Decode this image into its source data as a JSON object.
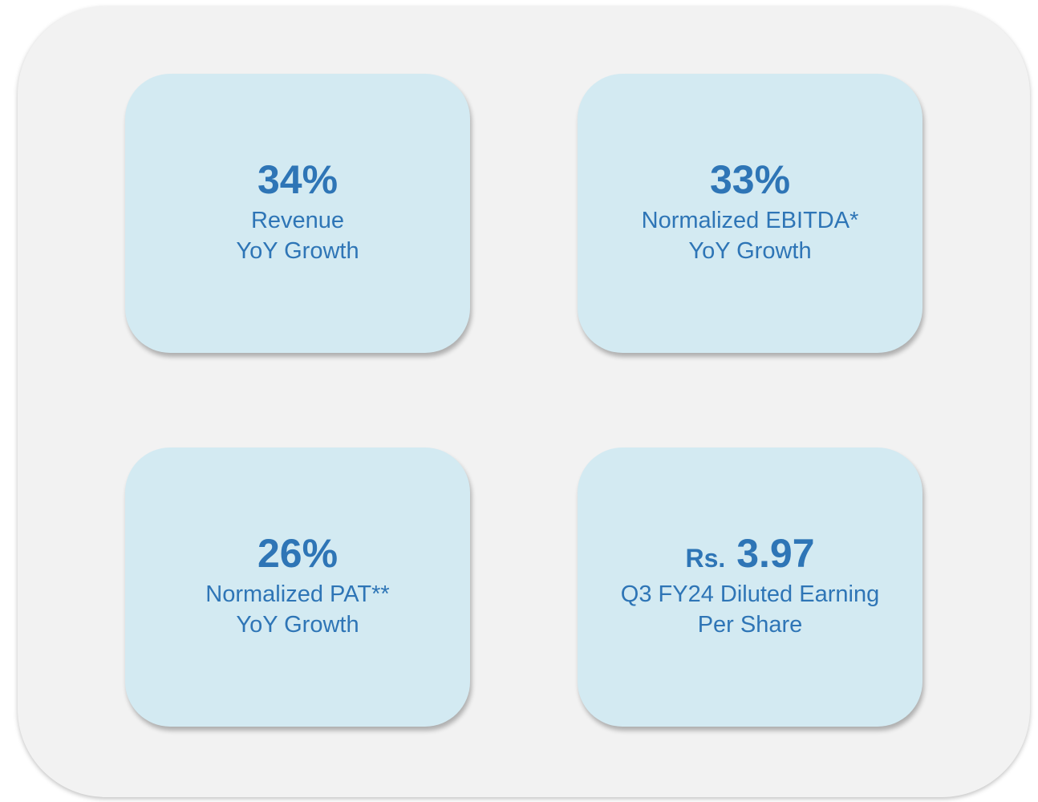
{
  "cards": [
    {
      "value": "34%",
      "lines": [
        "Revenue",
        "YoY Growth"
      ]
    },
    {
      "value": "33%",
      "lines": [
        "Normalized EBITDA*",
        "YoY Growth"
      ]
    },
    {
      "value": "26%",
      "lines": [
        "Normalized PAT**",
        "YoY Growth"
      ]
    },
    {
      "prefix": "Rs.",
      "value": "3.97",
      "lines": [
        "Q3 FY24 Diluted Earning",
        "Per Share"
      ]
    }
  ]
}
